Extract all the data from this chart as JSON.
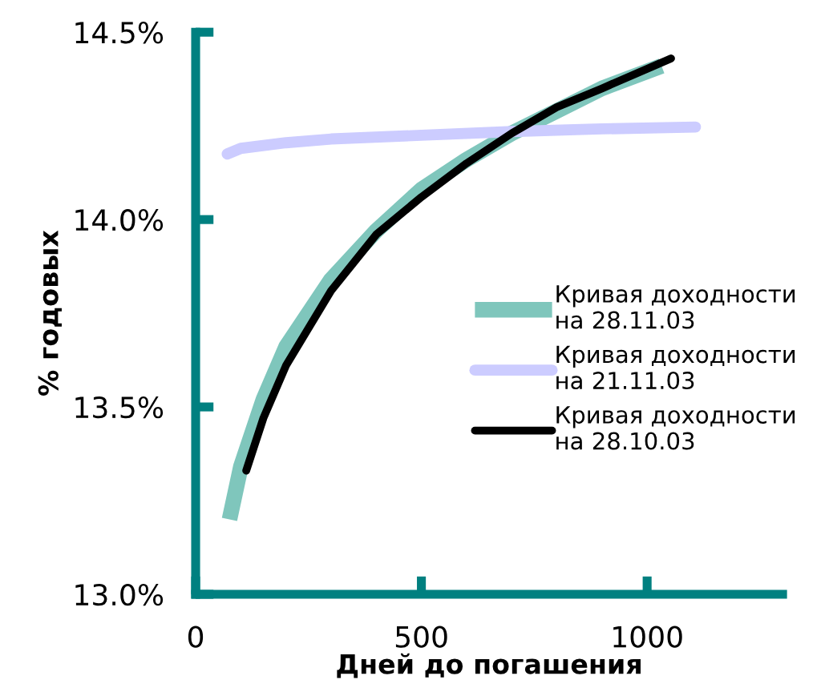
{
  "chart_data": {
    "type": "line",
    "xlabel": "Дней до погашения",
    "ylabel": "% годовых",
    "xlim": [
      0,
      1300
    ],
    "xticks": [
      0,
      500,
      1000
    ],
    "ylim": [
      13.0,
      14.5
    ],
    "yticks": [
      {
        "value": 13.0,
        "label": "13.0%"
      },
      {
        "value": 13.5,
        "label": "13.5%"
      },
      {
        "value": 14.0,
        "label": "14.0%"
      },
      {
        "value": 14.5,
        "label": "14.5%"
      }
    ],
    "grid": false,
    "legend": "right",
    "marker": "none",
    "line_style": "solid",
    "series": [
      {
        "name": "Кривая доходности\nна 28.11.03",
        "color": "#7fc6bc",
        "x": [
          75,
          100,
          150,
          200,
          300,
          400,
          500,
          600,
          700,
          800,
          900,
          1032
        ],
        "values": [
          13.2,
          13.34,
          13.52,
          13.66,
          13.84,
          13.97,
          14.08,
          14.16,
          14.23,
          14.29,
          14.35,
          14.41
        ]
      },
      {
        "name": "Кривая доходности\nна 21.11.03",
        "color": "#ccccff",
        "x": [
          70,
          100,
          200,
          300,
          500,
          700,
          900,
          1107
        ],
        "values": [
          14.175,
          14.19,
          14.205,
          14.215,
          14.225,
          14.235,
          14.242,
          14.247
        ]
      },
      {
        "name": "Кривая доходности\nна 28.10.03",
        "color": "#000000",
        "x": [
          112,
          150,
          200,
          300,
          400,
          500,
          600,
          700,
          800,
          900,
          1053
        ],
        "values": [
          13.33,
          13.47,
          13.61,
          13.81,
          13.96,
          14.06,
          14.15,
          14.23,
          14.3,
          14.35,
          14.43
        ]
      }
    ]
  }
}
